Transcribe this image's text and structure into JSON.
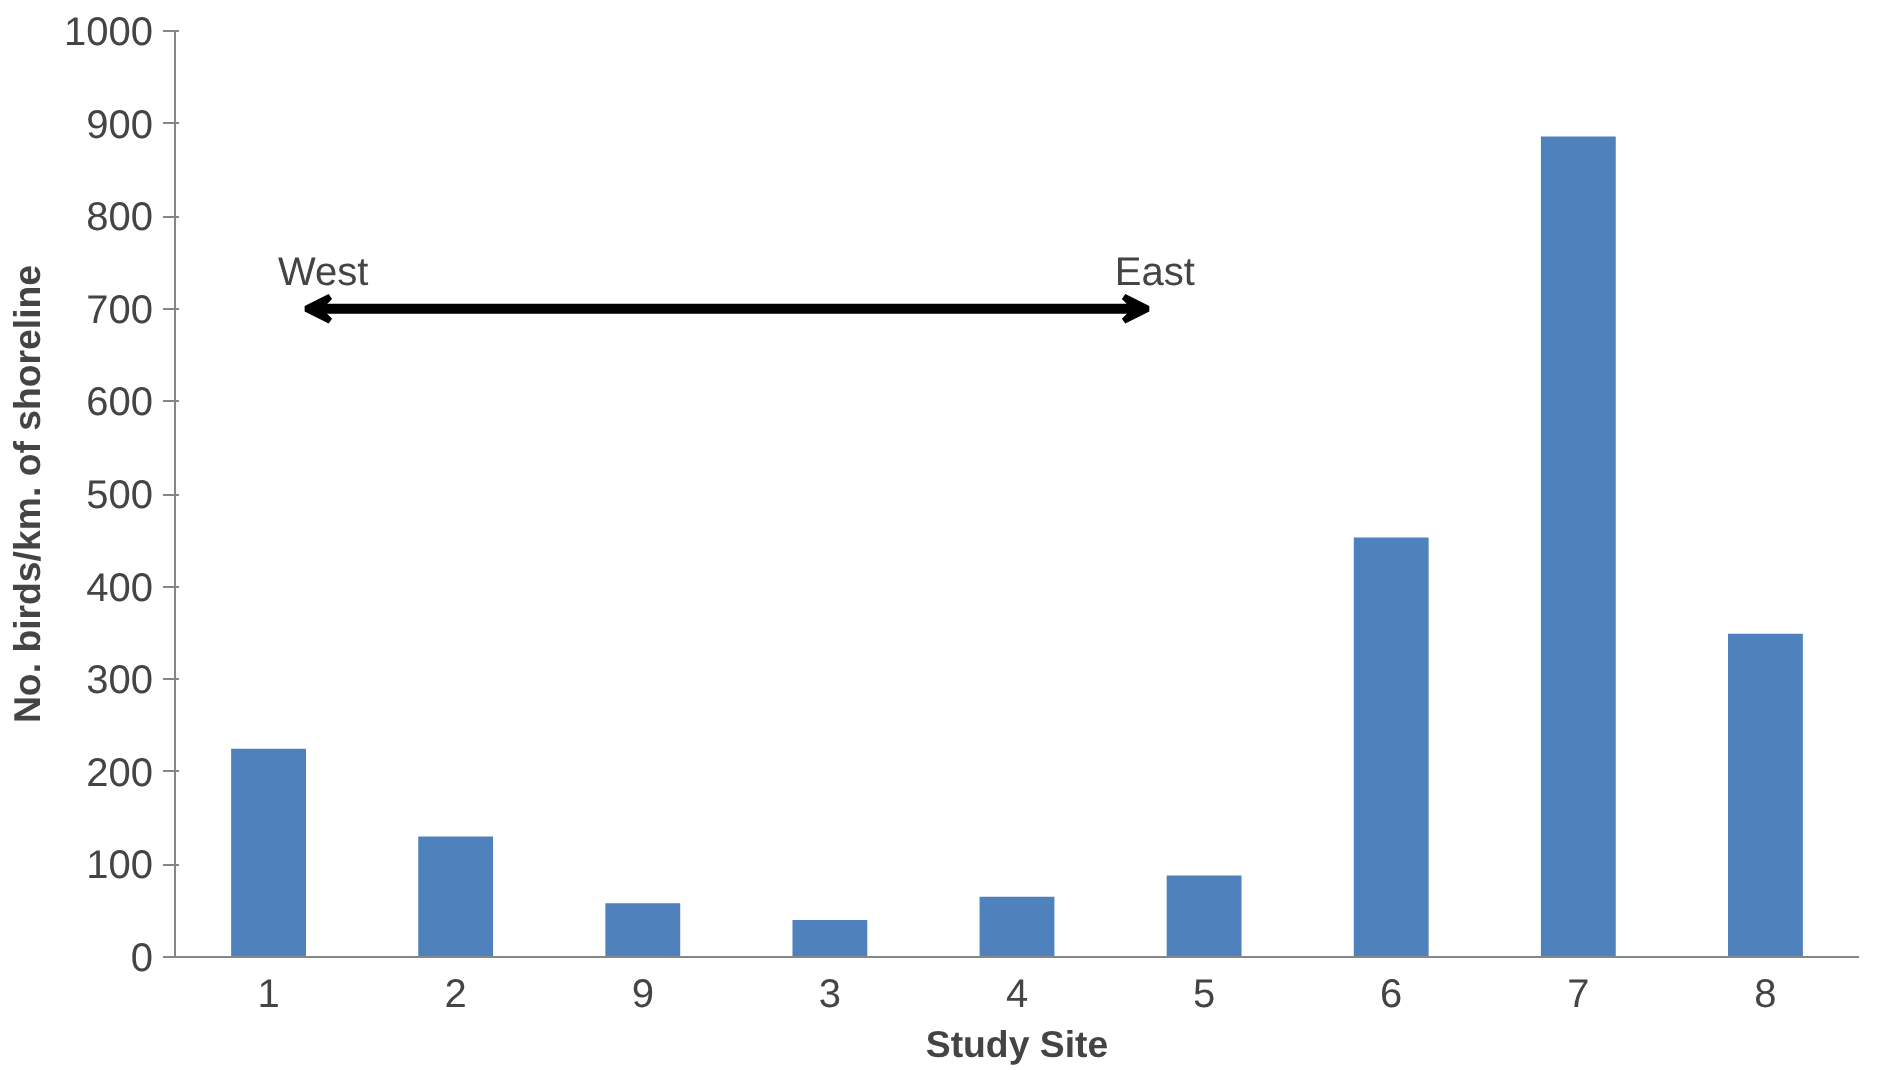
{
  "chart_data": {
    "type": "bar",
    "xlabel": "Study Site",
    "ylabel": "No. birds/km. of shoreline",
    "categories": [
      "1",
      "2",
      "9",
      "3",
      "4",
      "5",
      "6",
      "7",
      "8"
    ],
    "values": [
      225,
      130,
      58,
      40,
      65,
      88,
      453,
      886,
      349
    ],
    "color": "#4f81bd",
    "ylim": [
      0,
      1000
    ],
    "yticks": [
      0,
      100,
      200,
      300,
      400,
      500,
      600,
      700,
      800,
      900,
      1000
    ],
    "grid": false,
    "annotations": [
      "West",
      "East"
    ]
  }
}
